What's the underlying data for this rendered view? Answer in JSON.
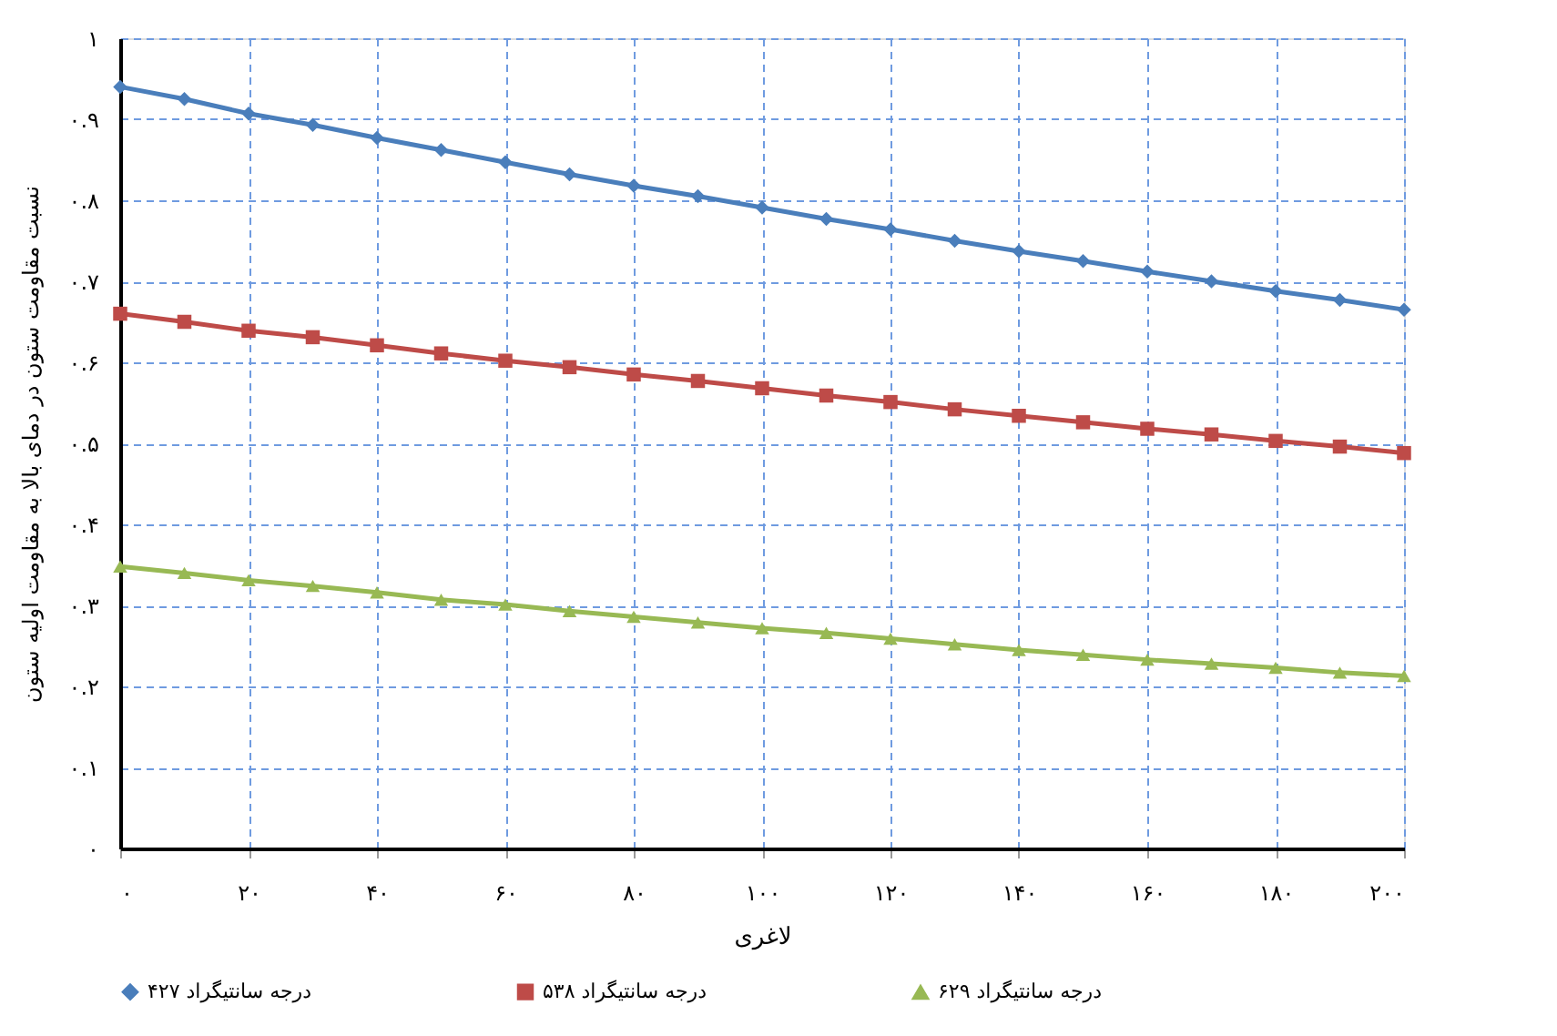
{
  "chart_data": {
    "type": "line",
    "xlabel": "لاغری",
    "ylabel": "نسبت مقاومت ستون در دمای بالا به مقاومت اولیه ستون",
    "x": [
      0,
      10,
      20,
      30,
      40,
      50,
      60,
      70,
      80,
      90,
      100,
      110,
      120,
      130,
      140,
      150,
      160,
      170,
      180,
      190,
      200
    ],
    "series": [
      {
        "name": "۴۲۷ درجه سانتیگراد",
        "color": "#4a7ebb",
        "marker": "diamond",
        "values": [
          0.94,
          0.925,
          0.907,
          0.893,
          0.877,
          0.862,
          0.847,
          0.832,
          0.818,
          0.805,
          0.791,
          0.777,
          0.764,
          0.75,
          0.737,
          0.725,
          0.712,
          0.7,
          0.688,
          0.677,
          0.665
        ]
      },
      {
        "name": "۵۳۸ درجه سانتیگراد",
        "color": "#be4b48",
        "marker": "square",
        "values": [
          0.66,
          0.65,
          0.639,
          0.631,
          0.621,
          0.611,
          0.602,
          0.594,
          0.585,
          0.577,
          0.568,
          0.559,
          0.551,
          0.542,
          0.534,
          0.526,
          0.518,
          0.511,
          0.503,
          0.496,
          0.488
        ]
      },
      {
        "name": "۶۲۹ درجه سانتیگراد",
        "color": "#98b954",
        "marker": "triangle",
        "values": [
          0.348,
          0.34,
          0.331,
          0.324,
          0.316,
          0.307,
          0.301,
          0.293,
          0.286,
          0.279,
          0.272,
          0.266,
          0.259,
          0.252,
          0.245,
          0.239,
          0.233,
          0.228,
          0.223,
          0.217,
          0.213
        ]
      }
    ],
    "xlim": [
      0,
      200
    ],
    "xticks": [
      {
        "value": 0,
        "label": "۰"
      },
      {
        "value": 20,
        "label": "۲۰"
      },
      {
        "value": 40,
        "label": "۴۰"
      },
      {
        "value": 60,
        "label": "۶۰"
      },
      {
        "value": 80,
        "label": "۸۰"
      },
      {
        "value": 100,
        "label": "۱۰۰"
      },
      {
        "value": 120,
        "label": "۱۲۰"
      },
      {
        "value": 140,
        "label": "۱۴۰"
      },
      {
        "value": 160,
        "label": "۱۶۰"
      },
      {
        "value": 180,
        "label": "۱۸۰"
      },
      {
        "value": 200,
        "label": "۲۰۰"
      }
    ],
    "ylim": [
      0,
      1
    ],
    "yticks": [
      {
        "value": 0,
        "label": "۰"
      },
      {
        "value": 0.1,
        "label": "۰.۱"
      },
      {
        "value": 0.2,
        "label": "۰.۲"
      },
      {
        "value": 0.3,
        "label": "۰.۳"
      },
      {
        "value": 0.4,
        "label": "۰.۴"
      },
      {
        "value": 0.5,
        "label": "۰.۵"
      },
      {
        "value": 0.6,
        "label": "۰.۶"
      },
      {
        "value": 0.7,
        "label": "۰.۷"
      },
      {
        "value": 0.8,
        "label": "۰.۸"
      },
      {
        "value": 0.9,
        "label": "۰.۹"
      },
      {
        "value": 1,
        "label": "۱"
      }
    ],
    "grid": true,
    "legend": "bottom",
    "line_style": "solid"
  }
}
